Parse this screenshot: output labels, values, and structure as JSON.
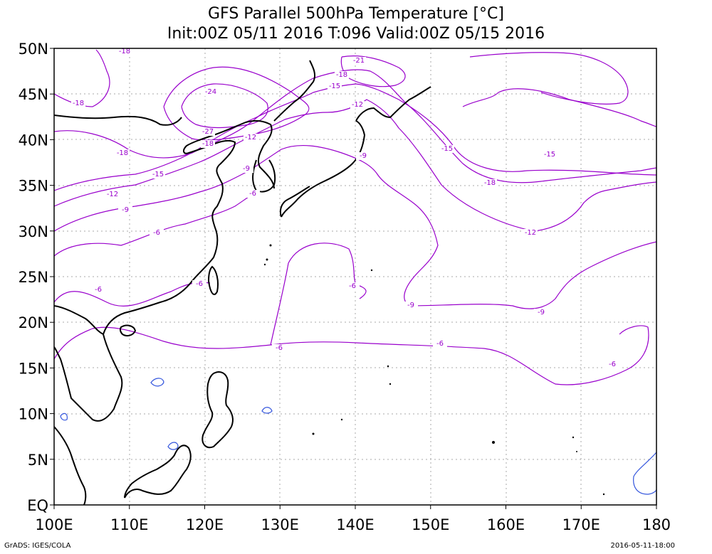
{
  "title_line1": "GFS Parallel 500hPa Temperature [°C]",
  "title_line2": "Init:00Z 05/11 2016 T:096 Valid:00Z 05/15 2016",
  "footer_left": "GrADS: IGES/COLA",
  "footer_right": "2016-05-11-18:00",
  "colors": {
    "contour": "#9900cc",
    "contour_zero_warm": "#3355dd",
    "coast": "#000000",
    "grid": "#aaaaaa"
  },
  "lon_ticks": [
    "100E",
    "110E",
    "120E",
    "130E",
    "140E",
    "150E",
    "160E",
    "170E",
    "180"
  ],
  "lat_ticks": [
    "50N",
    "45N",
    "40N",
    "35N",
    "30N",
    "25N",
    "20N",
    "15N",
    "10N",
    "5N",
    "EQ"
  ],
  "contour_labels": [
    "-18",
    "-24",
    "-21",
    "-18",
    "-15",
    "-12",
    "-27",
    "-18",
    "-12",
    "-9",
    "-18",
    "-15",
    "-12",
    "-9",
    "-6",
    "-9",
    "-6",
    "-6",
    "-6",
    "-6",
    "-6",
    "-18",
    "-15",
    "-15",
    "-18",
    "-12",
    "-9",
    "-9",
    "-6",
    "-6"
  ]
}
